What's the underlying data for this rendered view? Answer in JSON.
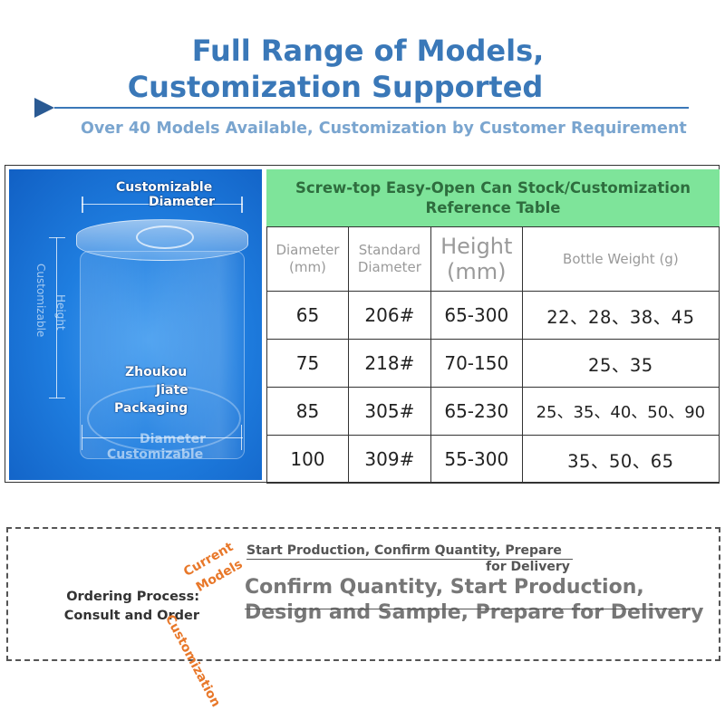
{
  "header": {
    "title_line1": "Full Range of Models,",
    "title_line2": "Customization Supported",
    "subtitle": "Over 40 Models Available, Customization by Customer Requirement"
  },
  "photo": {
    "top_label_1": "Customizable",
    "top_label_2": "Diameter",
    "side_label_1": "Height",
    "side_label_2": "Customizable",
    "brand_1": "Zhoukou",
    "brand_2": "Jiate",
    "brand_3": "Packaging",
    "bottom_label_1": "Diameter",
    "bottom_label_2": "Customizable"
  },
  "table": {
    "title": "Screw-top Easy-Open Can Stock/Customization Reference Table",
    "headers": [
      "Diameter (mm)",
      "Standard Diameter",
      "Height (mm)",
      "Bottle Weight (g)"
    ],
    "rows": [
      [
        "65",
        "206#",
        "65-300",
        "22、28、38、45"
      ],
      [
        "75",
        "218#",
        "70-150",
        "25、35"
      ],
      [
        "85",
        "305#",
        "65-230",
        "25、35、40、50、90"
      ],
      [
        "100",
        "309#",
        "55-300",
        "35、50、65"
      ]
    ]
  },
  "process": {
    "label_1": "Ordering Process:",
    "label_2": "Consult and Order",
    "badge_1": "Current",
    "badge_2": "Models",
    "badge_3": "Customization",
    "current_line_1": "Start Production, Confirm Quantity, Prepare",
    "current_line_2": "for Delivery",
    "custom_line": "Confirm Quantity, Start Production, Design and Sample, Prepare for Delivery"
  }
}
